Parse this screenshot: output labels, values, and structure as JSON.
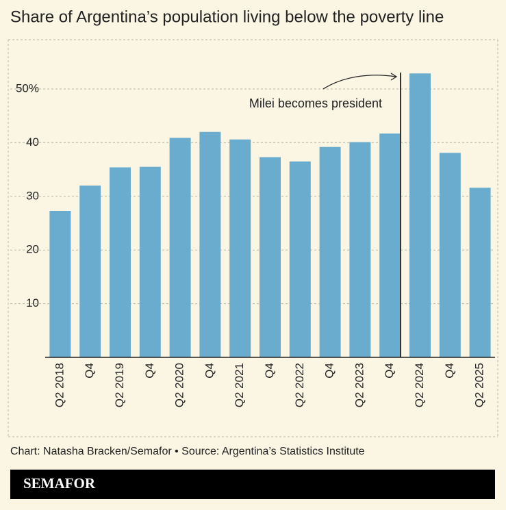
{
  "chart_data": {
    "type": "bar",
    "title": "Share of Argentina’s population living below the poverty line",
    "categories": [
      "Q2 2018",
      "Q4",
      "Q2 2019",
      "Q4",
      "Q2 2020",
      "Q4",
      "Q2 2021",
      "Q4",
      "Q2 2022",
      "Q4",
      "Q2 2023",
      "Q4",
      "Q2 2024",
      "Q4",
      "Q2 2025"
    ],
    "values": [
      27.3,
      32.0,
      35.4,
      35.5,
      40.9,
      42.0,
      40.6,
      37.3,
      36.5,
      39.2,
      40.1,
      41.7,
      52.9,
      38.1,
      31.6
    ],
    "color": "#6aacce",
    "ylim": [
      0,
      60
    ],
    "yticks": [
      10,
      20,
      30,
      40,
      {
        "value": 50,
        "label": "50%"
      }
    ],
    "grid": true,
    "annotation": "Milei becomes president",
    "source": "Chart: Natasha Bracken/Semafor • Source: Argentina’s Statistics Institute",
    "brand": "SEMAFOR"
  }
}
